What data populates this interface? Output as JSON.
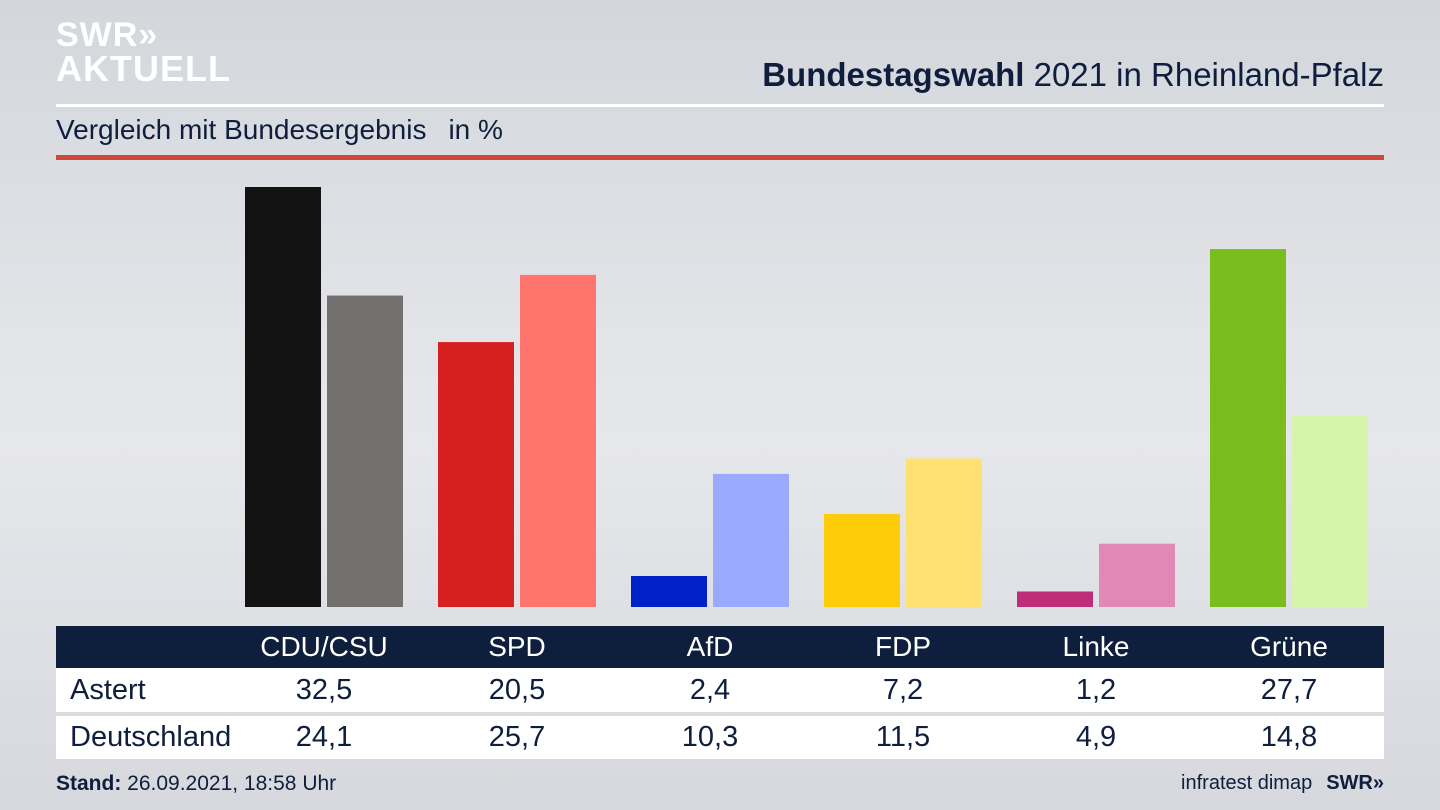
{
  "logo": {
    "line1": "SWR»",
    "line2": "AKTUELL"
  },
  "header": {
    "title_bold": "Bundestagswahl",
    "title_rest": " 2021 in Rheinland-Pfalz",
    "subtitle": "Vergleich mit Bundesergebnis",
    "unit": "in %"
  },
  "colors": {
    "title_text": "#0f1e3c",
    "table_header_bg": "#0e1e3d",
    "accent_rule": "#cd4a38"
  },
  "chart_data": {
    "type": "bar",
    "title": "Bundestagswahl 2021 in Rheinland-Pfalz",
    "subtitle": "Vergleich mit Bundesergebnis in %",
    "xlabel": "",
    "ylabel": "%",
    "ylim": [
      0,
      32.5
    ],
    "grid": false,
    "categories": [
      "CDU/CSU",
      "SPD",
      "AfD",
      "FDP",
      "Linke",
      "Grüne"
    ],
    "series": [
      {
        "name": "Astert",
        "values": [
          32.5,
          20.5,
          2.4,
          7.2,
          1.2,
          27.7
        ],
        "labels": [
          "32,5",
          "20,5",
          "2,4",
          "7,2",
          "1,2",
          "27,7"
        ],
        "colors": [
          "#121212",
          "#d61f1f",
          "#0020c8",
          "#ffcc0a",
          "#be2e78",
          "#7abd1e"
        ]
      },
      {
        "name": "Deutschland",
        "values": [
          24.1,
          25.7,
          10.3,
          11.5,
          4.9,
          14.8
        ],
        "labels": [
          "24,1",
          "25,7",
          "10,3",
          "11,5",
          "4,9",
          "14,8"
        ],
        "colors": [
          "#72716f",
          "#ff746c",
          "#9aaaff",
          "#ffe072",
          "#e089b6",
          "#d6f5aa"
        ]
      }
    ]
  },
  "footer": {
    "stand_label": "Stand:",
    "stand_value": " 26.09.2021, 18:58 Uhr",
    "source": "infratest dimap",
    "brand": "SWR»"
  }
}
